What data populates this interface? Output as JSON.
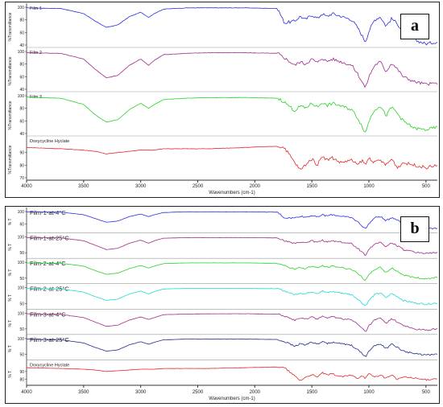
{
  "panels": [
    {
      "id": "a",
      "letter": "a",
      "xlabel": "Wavenumbers (cm-1)",
      "ylabel": "%Transmittance",
      "xlim": [
        4000,
        400
      ],
      "x_ticks": [
        "4000",
        "3500",
        "3000",
        "2500",
        "2000",
        "1500",
        "1000",
        "500"
      ],
      "rows": [
        {
          "name": "Film 1",
          "color": "#2a2ae0",
          "y_ticks": [
            "100",
            "80",
            "60",
            "40"
          ]
        },
        {
          "name": "Film 2",
          "color": "#a0288c",
          "y_ticks": [
            "100",
            "80",
            "60",
            "40"
          ]
        },
        {
          "name": "Film 3",
          "color": "#28d228",
          "y_ticks": [
            "100",
            "80",
            "60",
            "40"
          ]
        },
        {
          "name": "Doxycycline Hyclate",
          "color": "#e02828",
          "y_ticks": [
            "90",
            "80",
            "70"
          ]
        }
      ]
    },
    {
      "id": "b",
      "letter": "b",
      "xlabel": "Wavenumbers (cm-1)",
      "ylabel": "% T",
      "xlim": [
        4000,
        400
      ],
      "x_ticks": [
        "4000",
        "3500",
        "3000",
        "2500",
        "2000",
        "1500",
        "1000",
        "500"
      ],
      "rows": [
        {
          "name": "Film-1-at-4°C",
          "color": "#2a2ae0",
          "y_ticks": [
            "100",
            "60"
          ]
        },
        {
          "name": "Film-1-at-25°C",
          "color": "#a0288c",
          "y_ticks": [
            "100",
            "50"
          ]
        },
        {
          "name": "Film-2-at-4°C",
          "color": "#28d228",
          "y_ticks": [
            "100",
            "50"
          ]
        },
        {
          "name": "Film-2-at-25°C",
          "color": "#20d8d8",
          "y_ticks": [
            "100",
            "50"
          ]
        },
        {
          "name": "Film-3-at-4°C",
          "color": "#a0288c",
          "y_ticks": [
            "100",
            "50"
          ]
        },
        {
          "name": "Film-3-at-25°C",
          "color": "#202890",
          "y_ticks": [
            "100",
            "50"
          ]
        },
        {
          "name": "Doxycycline Hyclate",
          "color": "#e02828",
          "y_ticks": [
            "90",
            "80"
          ]
        }
      ]
    }
  ],
  "chart_data": [
    {
      "type": "line",
      "xlabel": "Wavenumbers (cm-1)",
      "ylabel": "%Transmittance",
      "xlim": [
        4000,
        400
      ],
      "x": [
        4000,
        3700,
        3500,
        3400,
        3300,
        3200,
        3100,
        3000,
        2930,
        2880,
        2800,
        2600,
        2400,
        2100,
        1800,
        1740,
        1650,
        1600,
        1560,
        1500,
        1450,
        1410,
        1370,
        1320,
        1250,
        1150,
        1100,
        1060,
        1030,
        1000,
        950,
        900,
        850,
        800,
        750,
        700,
        600,
        500,
        400
      ],
      "series": [
        {
          "name": "Film 1",
          "y_range": [
            40,
            100
          ],
          "values": [
            99,
            98,
            90,
            78,
            68,
            72,
            85,
            92,
            84,
            90,
            97,
            99,
            99,
            99,
            98,
            75,
            78,
            86,
            80,
            88,
            82,
            90,
            85,
            90,
            86,
            80,
            68,
            55,
            45,
            62,
            80,
            85,
            70,
            82,
            74,
            60,
            48,
            42,
            45
          ]
        },
        {
          "name": "Film 2",
          "y_range": [
            40,
            100
          ],
          "values": [
            98,
            97,
            88,
            72,
            58,
            62,
            78,
            88,
            78,
            86,
            95,
            97,
            98,
            98,
            97,
            90,
            78,
            84,
            80,
            88,
            82,
            90,
            84,
            88,
            84,
            78,
            65,
            52,
            42,
            60,
            78,
            84,
            68,
            82,
            72,
            60,
            52,
            48,
            50
          ]
        },
        {
          "name": "Film 3",
          "y_range": [
            40,
            100
          ],
          "values": [
            98,
            96,
            86,
            70,
            58,
            62,
            78,
            88,
            80,
            86,
            94,
            96,
            97,
            97,
            96,
            90,
            76,
            84,
            80,
            88,
            82,
            90,
            84,
            88,
            84,
            78,
            65,
            52,
            40,
            60,
            78,
            84,
            68,
            82,
            72,
            60,
            48,
            46,
            50
          ]
        },
        {
          "name": "Doxycycline Hyclate",
          "y_range": [
            70,
            100
          ],
          "values": [
            94,
            93,
            92,
            91,
            89,
            90,
            91,
            92,
            92,
            92,
            93,
            93,
            93,
            94,
            95,
            94,
            82,
            76,
            80,
            85,
            80,
            88,
            84,
            86,
            82,
            84,
            80,
            84,
            80,
            86,
            82,
            84,
            80,
            85,
            78,
            82,
            80,
            78,
            80
          ]
        }
      ]
    },
    {
      "type": "line",
      "xlabel": "Wavenumbers (cm-1)",
      "ylabel": "% T",
      "xlim": [
        4000,
        400
      ],
      "x": [
        4000,
        3700,
        3500,
        3400,
        3300,
        3200,
        3100,
        3000,
        2930,
        2880,
        2800,
        2600,
        2400,
        2100,
        1800,
        1740,
        1650,
        1600,
        1560,
        1500,
        1450,
        1410,
        1370,
        1320,
        1250,
        1150,
        1100,
        1060,
        1030,
        1000,
        950,
        900,
        850,
        800,
        750,
        700,
        600,
        500,
        400
      ],
      "series": [
        {
          "name": "Film-1-at-4°C",
          "y_range": [
            40,
            100
          ],
          "values": [
            99,
            98,
            90,
            78,
            66,
            70,
            84,
            92,
            84,
            90,
            97,
            99,
            99,
            99,
            98,
            80,
            80,
            86,
            82,
            88,
            82,
            90,
            86,
            90,
            86,
            80,
            68,
            55,
            45,
            62,
            80,
            85,
            70,
            82,
            74,
            60,
            50,
            44,
            48
          ]
        },
        {
          "name": "Film-1-at-25°C",
          "y_range": [
            40,
            100
          ],
          "values": [
            98,
            97,
            88,
            74,
            60,
            64,
            80,
            90,
            80,
            88,
            96,
            98,
            98,
            98,
            97,
            88,
            78,
            84,
            80,
            88,
            82,
            90,
            84,
            88,
            84,
            78,
            65,
            52,
            42,
            60,
            78,
            84,
            68,
            82,
            72,
            60,
            52,
            48,
            50
          ]
        },
        {
          "name": "Film-2-at-4°C",
          "y_range": [
            40,
            100
          ],
          "values": [
            98,
            97,
            88,
            74,
            62,
            66,
            80,
            90,
            82,
            88,
            96,
            98,
            98,
            98,
            97,
            90,
            78,
            84,
            80,
            88,
            82,
            90,
            84,
            88,
            84,
            78,
            65,
            52,
            42,
            60,
            78,
            84,
            68,
            82,
            72,
            60,
            52,
            48,
            52
          ]
        },
        {
          "name": "Film-2-at-25°C",
          "y_range": [
            40,
            100
          ],
          "values": [
            98,
            96,
            86,
            72,
            60,
            64,
            80,
            90,
            80,
            88,
            96,
            98,
            98,
            98,
            97,
            90,
            78,
            84,
            80,
            88,
            82,
            90,
            84,
            88,
            84,
            78,
            65,
            52,
            42,
            60,
            78,
            84,
            68,
            82,
            72,
            60,
            52,
            48,
            52
          ]
        },
        {
          "name": "Film-3-at-4°C",
          "y_range": [
            40,
            100
          ],
          "values": [
            98,
            96,
            86,
            72,
            58,
            62,
            78,
            88,
            80,
            86,
            95,
            97,
            98,
            98,
            97,
            90,
            78,
            84,
            80,
            88,
            82,
            90,
            84,
            88,
            84,
            78,
            65,
            52,
            40,
            60,
            78,
            84,
            68,
            82,
            72,
            60,
            50,
            46,
            50
          ]
        },
        {
          "name": "Film-3-at-25°C",
          "y_range": [
            40,
            100
          ],
          "values": [
            98,
            96,
            86,
            72,
            60,
            64,
            80,
            90,
            82,
            88,
            96,
            98,
            98,
            98,
            97,
            90,
            76,
            84,
            80,
            88,
            82,
            90,
            84,
            88,
            84,
            78,
            65,
            52,
            42,
            60,
            78,
            84,
            68,
            82,
            72,
            60,
            52,
            48,
            50
          ]
        },
        {
          "name": "Doxycycline Hyclate",
          "y_range": [
            75,
            100
          ],
          "values": [
            95,
            94,
            93,
            92,
            90,
            91,
            92,
            93,
            93,
            93,
            94,
            94,
            94,
            95,
            96,
            95,
            84,
            78,
            82,
            86,
            82,
            89,
            85,
            87,
            83,
            85,
            81,
            85,
            81,
            87,
            83,
            85,
            81,
            86,
            79,
            83,
            81,
            79,
            81
          ]
        }
      ]
    }
  ]
}
